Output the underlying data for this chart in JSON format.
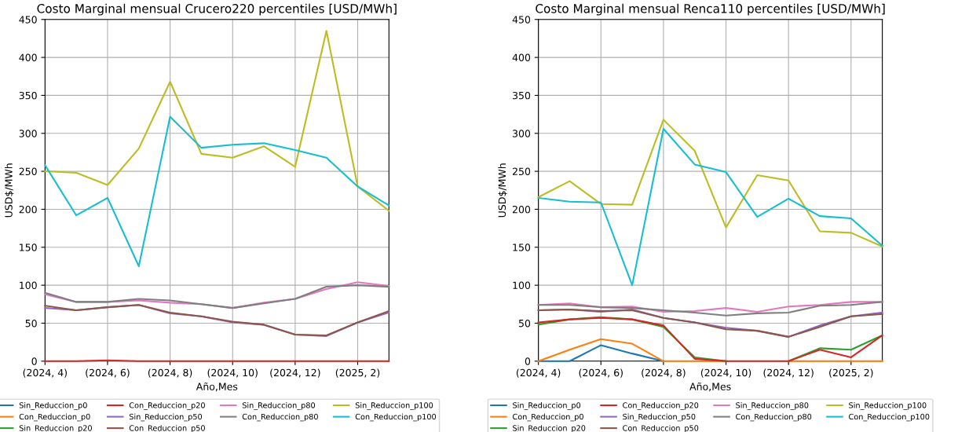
{
  "chart_data": [
    {
      "type": "line",
      "title": "Costo Marginal mensual Crucero220 percentiles [USD/MWh]",
      "xlabel": "Año,Mes",
      "ylabel": "USD$/MWh",
      "categories": [
        "(2024, 4)",
        null,
        "(2024, 6)",
        null,
        "(2024, 8)",
        null,
        "(2024, 10)",
        null,
        "(2024, 12)",
        null,
        "(2025, 2)",
        null
      ],
      "ylim": [
        0,
        450
      ],
      "yticks": [
        0,
        50,
        100,
        150,
        200,
        250,
        300,
        350,
        400,
        450
      ],
      "grid": true,
      "legend": "bottom",
      "series": [
        {
          "name": "Sin_Reduccion_p0",
          "color": "#1f77b4",
          "values": [
            null,
            null,
            null,
            null,
            null,
            null,
            null,
            null,
            null,
            null,
            null,
            null
          ]
        },
        {
          "name": "Con_Reduccion_p0",
          "color": "#ff7f0e",
          "values": [
            null,
            null,
            null,
            null,
            null,
            null,
            null,
            null,
            null,
            null,
            null,
            null
          ]
        },
        {
          "name": "Sin_Reduccion_p20",
          "color": "#2ca02c",
          "values": [
            null,
            null,
            null,
            null,
            null,
            null,
            null,
            null,
            null,
            null,
            null,
            null
          ]
        },
        {
          "name": "Con_Reduccion_p20",
          "color": "#d62728",
          "values": [
            0,
            0,
            1,
            0,
            0,
            0,
            0,
            0,
            0,
            0,
            0,
            0
          ]
        },
        {
          "name": "Sin_Reduccion_p50",
          "color": "#9467bd",
          "values": [
            70,
            67,
            71,
            74,
            63,
            59,
            51,
            48,
            35,
            33,
            51,
            64
          ]
        },
        {
          "name": "Con_Reduccion_p50",
          "color": "#8c564b",
          "values": [
            73,
            67,
            71,
            74,
            64,
            59,
            52,
            48,
            35,
            34,
            51,
            66
          ]
        },
        {
          "name": "Sin_Reduccion_p80",
          "color": "#e377c2",
          "values": [
            88,
            78,
            78,
            80,
            77,
            75,
            70,
            77,
            82,
            95,
            104,
            99
          ]
        },
        {
          "name": "Con_Reduccion_p80",
          "color": "#7f7f7f",
          "values": [
            90,
            78,
            78,
            82,
            80,
            75,
            70,
            76,
            82,
            98,
            100,
            98
          ]
        },
        {
          "name": "Sin_Reduccion_p100",
          "color": "#bcbd22",
          "values": [
            250,
            248,
            232,
            280,
            368,
            273,
            268,
            283,
            256,
            435,
            230,
            198
          ]
        },
        {
          "name": "Con_Reduccion_p100",
          "color": "#17becf",
          "values": [
            258,
            192,
            215,
            125,
            322,
            281,
            285,
            287,
            278,
            268,
            230,
            205
          ]
        }
      ]
    },
    {
      "type": "line",
      "title": "Costo Marginal mensual Renca110 percentiles [USD/MWh]",
      "xlabel": "Año,Mes",
      "ylabel": "USD$/MWh",
      "categories": [
        "(2024, 4)",
        null,
        "(2024, 6)",
        null,
        "(2024, 8)",
        null,
        "(2024, 10)",
        null,
        "(2024, 12)",
        null,
        "(2025, 2)",
        null
      ],
      "ylim": [
        0,
        450
      ],
      "yticks": [
        0,
        50,
        100,
        150,
        200,
        250,
        300,
        350,
        400,
        450
      ],
      "grid": true,
      "legend": "bottom",
      "series": [
        {
          "name": "Sin_Reduccion_p0",
          "color": "#1f77b4",
          "values": [
            0,
            0,
            21,
            10,
            0,
            null,
            null,
            null,
            null,
            null,
            null,
            null
          ]
        },
        {
          "name": "Con_Reduccion_p0",
          "color": "#ff7f0e",
          "values": [
            0,
            15,
            29,
            23,
            0,
            0,
            0,
            null,
            0,
            0,
            0,
            0
          ]
        },
        {
          "name": "Sin_Reduccion_p20",
          "color": "#2ca02c",
          "values": [
            48,
            55,
            58,
            55,
            45,
            5,
            0,
            null,
            0,
            17,
            15,
            34
          ]
        },
        {
          "name": "Con_Reduccion_p20",
          "color": "#d62728",
          "values": [
            51,
            55,
            57,
            55,
            47,
            3,
            0,
            0,
            0,
            15,
            5,
            34
          ]
        },
        {
          "name": "Sin_Reduccion_p50",
          "color": "#9467bd",
          "values": [
            67,
            68,
            65,
            68,
            57,
            51,
            44,
            40,
            32,
            47,
            59,
            64
          ]
        },
        {
          "name": "Con_Reduccion_p50",
          "color": "#8c564b",
          "values": [
            67,
            68,
            66,
            67,
            57,
            51,
            42,
            40,
            32,
            45,
            59,
            62
          ]
        },
        {
          "name": "Sin_Reduccion_p80",
          "color": "#e377c2",
          "values": [
            74,
            76,
            71,
            72,
            65,
            66,
            70,
            65,
            72,
            74,
            78,
            78
          ]
        },
        {
          "name": "Con_Reduccion_p80",
          "color": "#7f7f7f",
          "values": [
            74,
            74,
            71,
            70,
            67,
            64,
            60,
            63,
            64,
            73,
            74,
            78
          ]
        },
        {
          "name": "Sin_Reduccion_p100",
          "color": "#bcbd22",
          "values": [
            216,
            237,
            207,
            206,
            318,
            277,
            176,
            245,
            238,
            171,
            169,
            151
          ]
        },
        {
          "name": "Con_Reduccion_p100",
          "color": "#17becf",
          "values": [
            215,
            210,
            209,
            100,
            306,
            259,
            249,
            190,
            214,
            191,
            188,
            152
          ]
        }
      ]
    }
  ]
}
